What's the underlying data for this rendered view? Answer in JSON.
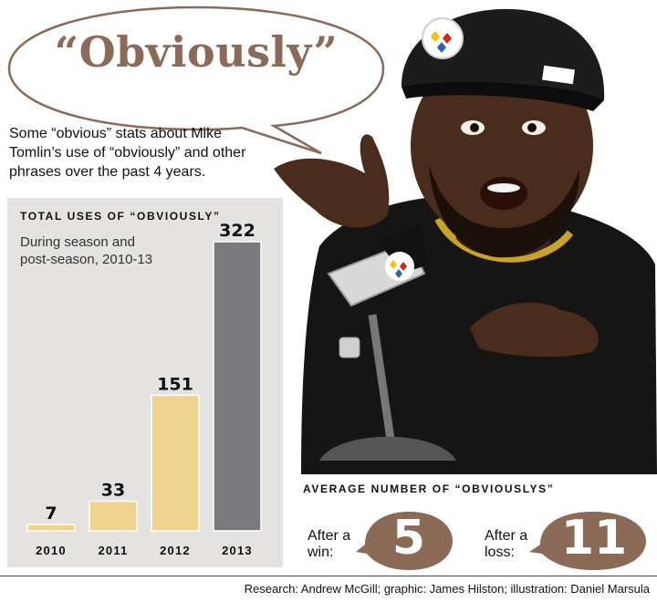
{
  "headline": "“Obviously”",
  "intro": "Some “obvious” stats about Mike Tomlin’s use of “obviously” and other phrases over the past 4 years.",
  "chart_data": {
    "type": "bar",
    "title": "TOTAL USES OF “OBVIOUSLY”",
    "subtitle": "During season and post-season, 2010-13",
    "categories": [
      "2010",
      "2011",
      "2012",
      "2013"
    ],
    "values": [
      7,
      33,
      151,
      322
    ],
    "data_labels": [
      "7",
      "33",
      "151",
      "322"
    ],
    "ylim": [
      0,
      322
    ],
    "grid": false,
    "legend": "none",
    "colors": [
      "#efd38f",
      "#efd38f",
      "#efd38f",
      "#7a7a7c"
    ]
  },
  "average": {
    "heading": "AVERAGE NUMBER OF “OBVIOUSLYS”",
    "win_label": "After a win:",
    "win_value": "5",
    "loss_label": "After a loss:",
    "loss_value": "11",
    "bubble_color": "#8b6b58"
  },
  "credits": "Research: Andrew McGill; graphic: James Hilston; illustration: Daniel Marsula"
}
